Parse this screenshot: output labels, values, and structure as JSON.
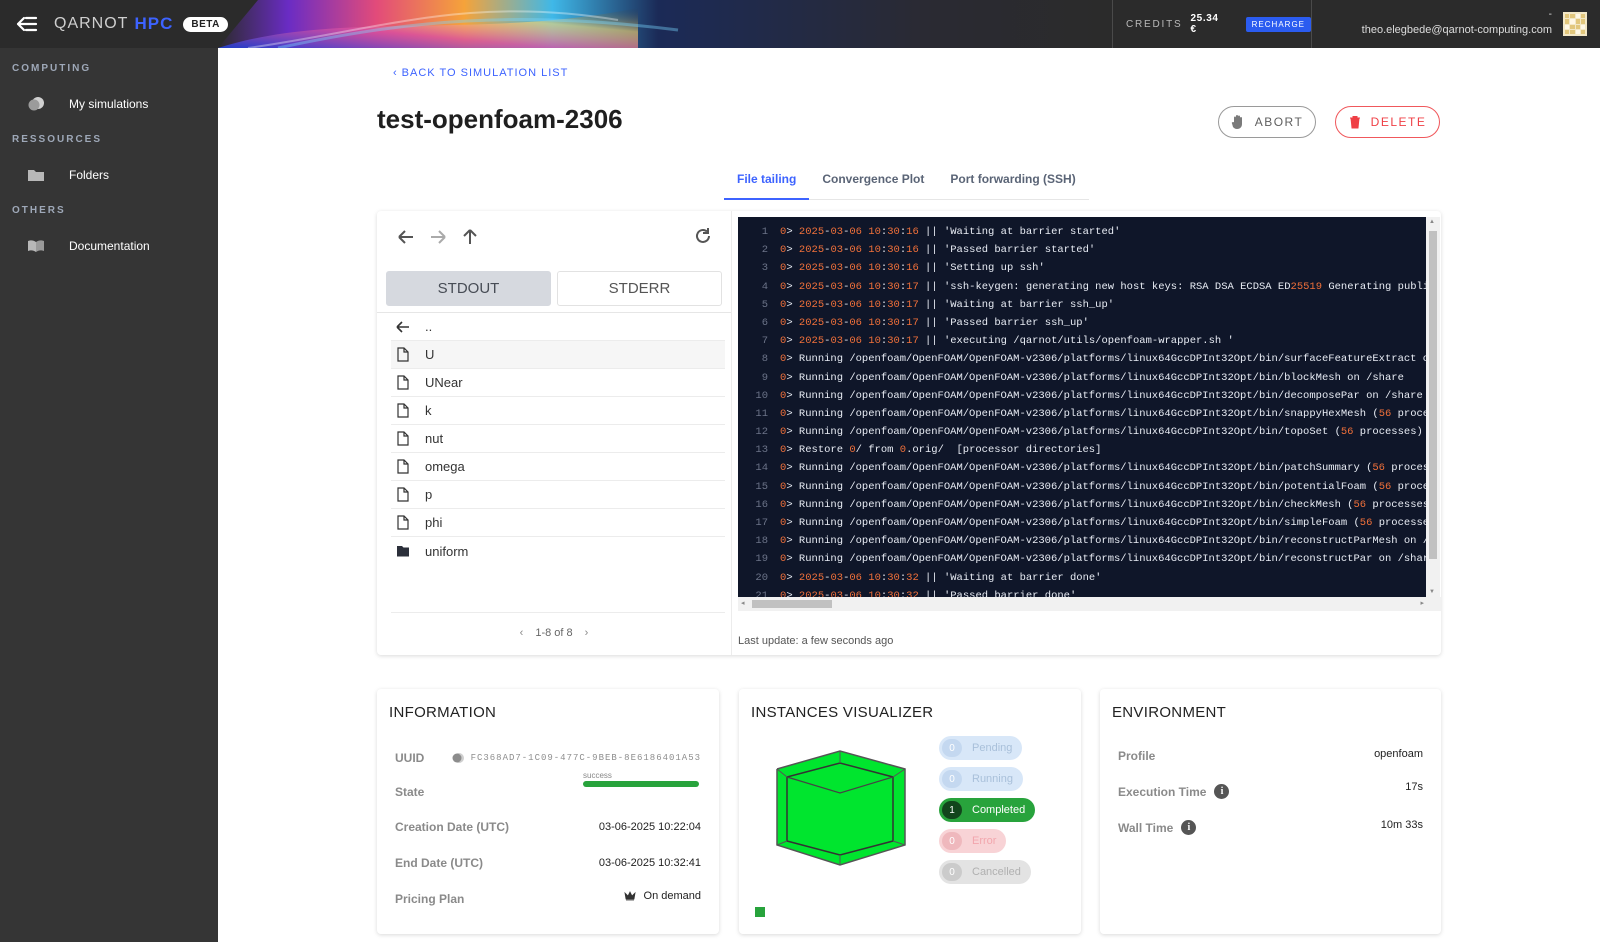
{
  "brand": {
    "name_part1": "QARNOT",
    "name_part2": "HPC",
    "badge": "BETA"
  },
  "credits": {
    "label": "CREDITS",
    "value": "25.34 €",
    "recharge_label": "RECHARGE"
  },
  "user": {
    "name": "-",
    "email": "theo.elegbede@qarnot-computing.com"
  },
  "sidebar": {
    "sections": [
      {
        "title": "COMPUTING",
        "items": [
          {
            "label": "My simulations",
            "icon": "simulations-icon"
          }
        ]
      },
      {
        "title": "RESSOURCES",
        "items": [
          {
            "label": "Folders",
            "icon": "folder-icon"
          }
        ]
      },
      {
        "title": "OTHERS",
        "items": [
          {
            "label": "Documentation",
            "icon": "book-icon"
          }
        ]
      }
    ]
  },
  "header": {
    "back_label": "BACK TO SIMULATION LIST",
    "title": "test-openfoam-2306",
    "abort_label": "ABORT",
    "delete_label": "DELETE"
  },
  "tabs": [
    {
      "label": "File tailing",
      "active": true
    },
    {
      "label": "Convergence Plot",
      "active": false
    },
    {
      "label": "Port forwarding (SSH)",
      "active": false
    }
  ],
  "file_browser": {
    "stdout_label": "STDOUT",
    "stderr_label": "STDERR",
    "up_label": "..",
    "files": [
      {
        "name": "U",
        "type": "file"
      },
      {
        "name": "UNear",
        "type": "file"
      },
      {
        "name": "k",
        "type": "file"
      },
      {
        "name": "nut",
        "type": "file"
      },
      {
        "name": "omega",
        "type": "file"
      },
      {
        "name": "p",
        "type": "file"
      },
      {
        "name": "phi",
        "type": "file"
      },
      {
        "name": "uniform",
        "type": "folder"
      }
    ],
    "pager": "1-8 of 8"
  },
  "terminal": {
    "lines": [
      "0> 2025-03-06 10:30:16 || 'Waiting at barrier started'",
      "0> 2025-03-06 10:30:16 || 'Passed barrier started'",
      "0> 2025-03-06 10:30:16 || 'Setting up ssh'",
      "0> 2025-03-06 10:30:17 || 'ssh-keygen: generating new host keys: RSA DSA ECDSA ED25519 Generating public",
      "0> 2025-03-06 10:30:17 || 'Waiting at barrier ssh_up'",
      "0> 2025-03-06 10:30:17 || 'Passed barrier ssh_up'",
      "0> 2025-03-06 10:30:17 || 'executing /qarnot/utils/openfoam-wrapper.sh '",
      "0> Running /openfoam/OpenFOAM/OpenFOAM-v2306/platforms/linux64GccDPInt32Opt/bin/surfaceFeatureExtract on",
      "0> Running /openfoam/OpenFOAM/OpenFOAM-v2306/platforms/linux64GccDPInt32Opt/bin/blockMesh on /share",
      "0> Running /openfoam/OpenFOAM/OpenFOAM-v2306/platforms/linux64GccDPInt32Opt/bin/decomposePar on /share",
      "0> Running /openfoam/OpenFOAM/OpenFOAM-v2306/platforms/linux64GccDPInt32Opt/bin/snappyHexMesh (56 proces",
      "0> Running /openfoam/OpenFOAM/OpenFOAM-v2306/platforms/linux64GccDPInt32Opt/bin/topoSet (56 processes) o",
      "0> Restore 0/ from 0.orig/  [processor directories]",
      "0> Running /openfoam/OpenFOAM/OpenFOAM-v2306/platforms/linux64GccDPInt32Opt/bin/patchSummary (56 process",
      "0> Running /openfoam/OpenFOAM/OpenFOAM-v2306/platforms/linux64GccDPInt32Opt/bin/potentialFoam (56 proces",
      "0> Running /openfoam/OpenFOAM/OpenFOAM-v2306/platforms/linux64GccDPInt32Opt/bin/checkMesh (56 processes)",
      "0> Running /openfoam/OpenFOAM/OpenFOAM-v2306/platforms/linux64GccDPInt32Opt/bin/simpleFoam (56 processes",
      "0> Running /openfoam/OpenFOAM/OpenFOAM-v2306/platforms/linux64GccDPInt32Opt/bin/reconstructParMesh on /s",
      "0> Running /openfoam/OpenFOAM/OpenFOAM-v2306/platforms/linux64GccDPInt32Opt/bin/reconstructPar on /share",
      "0> 2025-03-06 10:30:32 || 'Waiting at barrier done'",
      "0> 2025-03-06 10:30:32 || 'Passed barrier done'"
    ],
    "last_update": "Last update: a few seconds ago"
  },
  "information": {
    "title": "INFORMATION",
    "uuid_label": "UUID",
    "uuid_value": "FC368AD7-1C09-477C-9BEB-8E6186401A53",
    "state_label": "State",
    "state_value": "success",
    "state_progress": 1.0,
    "creation_label": "Creation Date (UTC)",
    "creation_value": "03-06-2025 10:22:04",
    "end_label": "End Date (UTC)",
    "end_value": "03-06-2025 10:32:41",
    "pricing_label": "Pricing Plan",
    "pricing_value": "On demand"
  },
  "instances": {
    "title": "INSTANCES VISUALIZER",
    "statuses": [
      {
        "key": "pending",
        "count": "0",
        "label": "Pending"
      },
      {
        "key": "running",
        "count": "0",
        "label": "Running"
      },
      {
        "key": "completed",
        "count": "1",
        "label": "Completed"
      },
      {
        "key": "error",
        "count": "0",
        "label": "Error"
      },
      {
        "key": "cancelled",
        "count": "0",
        "label": "Cancelled"
      }
    ],
    "cube_color": "#00e52e"
  },
  "environment": {
    "title": "ENVIRONMENT",
    "profile_label": "Profile",
    "profile_value": "openfoam",
    "exec_label": "Execution Time",
    "exec_value": "17s",
    "wall_label": "Wall Time",
    "wall_value": "10m 33s"
  },
  "colors": {
    "accent": "#3d63ff",
    "danger": "#ef3f45",
    "success": "#28a33c",
    "terminal_bg": "#0f1629"
  }
}
